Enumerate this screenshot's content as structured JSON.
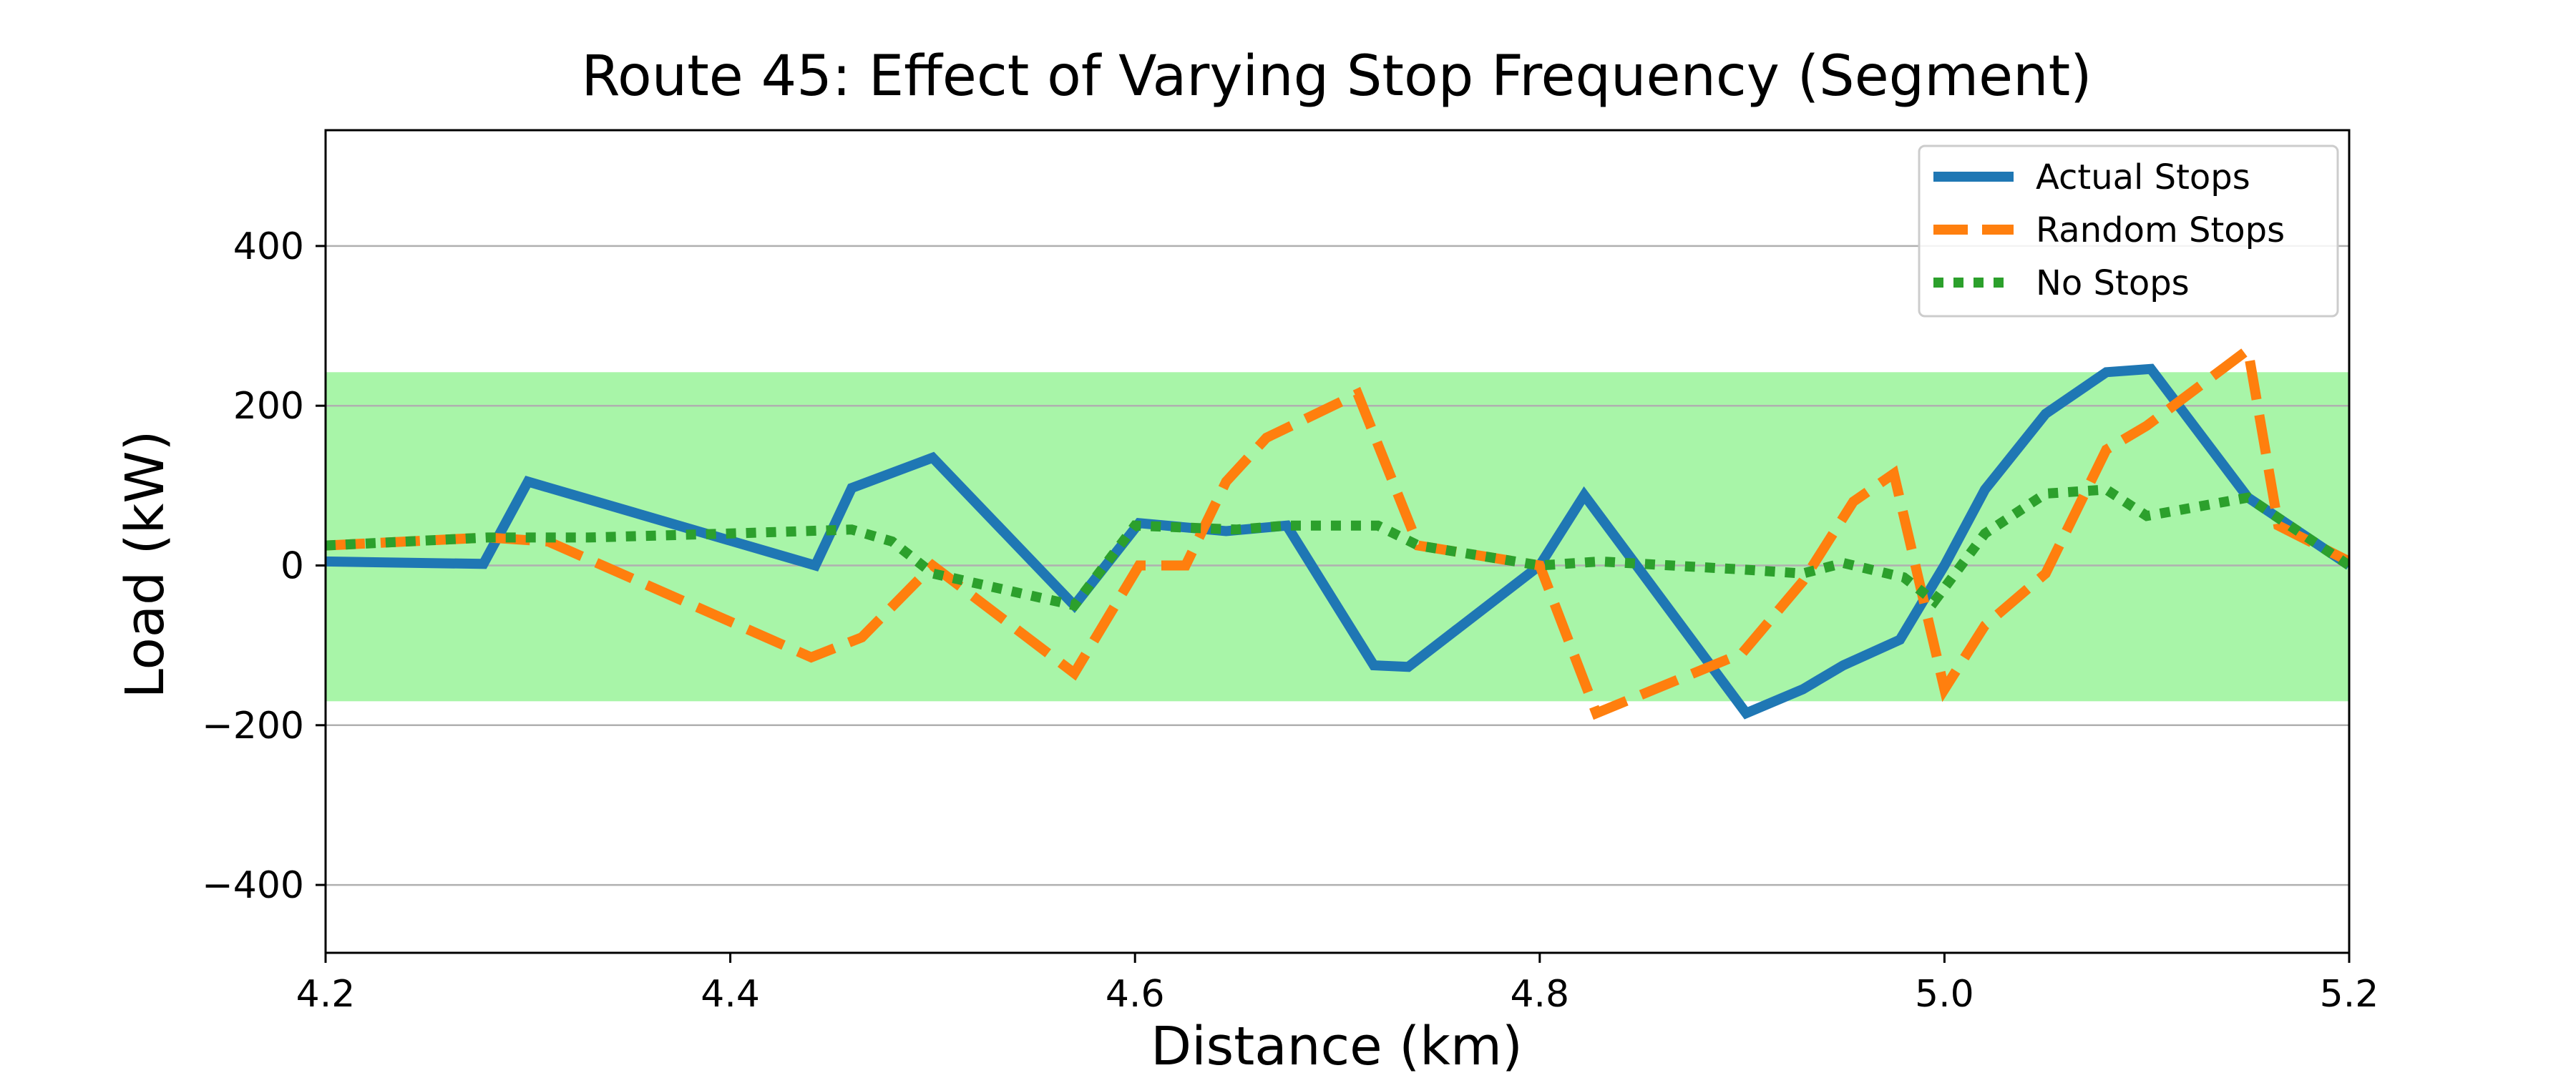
{
  "chart_data": {
    "type": "line",
    "title": "Route 45: Effect of Varying Stop Frequency (Segment)",
    "xlabel": "Distance (km)",
    "ylabel": "Load (kW)",
    "xlim": [
      4.2,
      5.2
    ],
    "ylim": [
      -485,
      545
    ],
    "xticks": [
      4.2,
      4.4,
      4.6,
      4.8,
      5.0,
      5.2
    ],
    "xtick_labels": [
      "4.2",
      "4.4",
      "4.6",
      "4.8",
      "5.0",
      "5.2"
    ],
    "yticks": [
      -400,
      -200,
      0,
      200,
      400
    ],
    "ytick_labels": [
      "−400",
      "−200",
      "0",
      "200",
      "400"
    ],
    "grid": "horizontal",
    "legend_position": "top-right",
    "band": {
      "y_low": -170,
      "y_high": 242,
      "color": "#a8f5a8"
    },
    "series": [
      {
        "name": "Actual Stops",
        "color": "#1f77b4",
        "style": "solid",
        "x": [
          4.2,
          4.278,
          4.3,
          4.442,
          4.46,
          4.5,
          4.57,
          4.602,
          4.645,
          4.675,
          4.718,
          4.735,
          4.8,
          4.822,
          4.902,
          4.93,
          4.95,
          4.978,
          5.0,
          5.02,
          5.05,
          5.08,
          5.102,
          5.15,
          5.2
        ],
        "y": [
          5,
          2,
          105,
          0,
          97,
          135,
          -50,
          53,
          43,
          50,
          -125,
          -127,
          0,
          88,
          -185,
          -155,
          -125,
          -93,
          0,
          95,
          190,
          242,
          246,
          85,
          0
        ]
      },
      {
        "name": "Random Stops",
        "color": "#ff7f0e",
        "style": "dashed",
        "x": [
          4.2,
          4.28,
          4.31,
          4.44,
          4.465,
          4.5,
          4.57,
          4.602,
          4.625,
          4.645,
          4.665,
          4.71,
          4.74,
          4.8,
          4.828,
          4.9,
          4.93,
          4.955,
          4.975,
          5.0,
          5.02,
          5.05,
          5.08,
          5.1,
          5.15,
          5.165,
          5.2
        ],
        "y": [
          25,
          35,
          30,
          -115,
          -90,
          0,
          -135,
          0,
          0,
          105,
          160,
          215,
          25,
          0,
          -185,
          -110,
          -20,
          80,
          115,
          -155,
          -75,
          -10,
          145,
          175,
          270,
          50,
          5
        ]
      },
      {
        "name": "No Stops",
        "color": "#2ca02c",
        "style": "dotted",
        "x": [
          4.2,
          4.28,
          4.33,
          4.4,
          4.46,
          4.48,
          4.5,
          4.57,
          4.6,
          4.65,
          4.675,
          4.72,
          4.74,
          4.8,
          4.83,
          4.9,
          4.93,
          4.95,
          4.98,
          4.995,
          5.02,
          5.05,
          5.08,
          5.1,
          5.15,
          5.2
        ],
        "y": [
          25,
          35,
          35,
          40,
          45,
          30,
          -10,
          -50,
          50,
          45,
          50,
          50,
          25,
          0,
          5,
          -5,
          -10,
          3,
          -15,
          -45,
          40,
          90,
          95,
          62,
          85,
          0
        ]
      }
    ]
  }
}
